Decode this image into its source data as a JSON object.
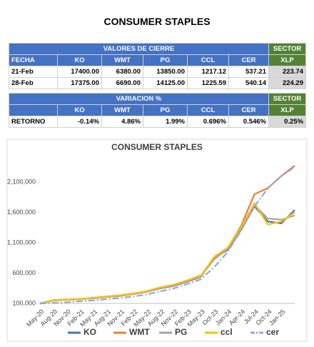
{
  "title": "CONSUMER STAPLES",
  "table1": {
    "group_header": "VALORES DE CIERRE",
    "sector": "SECTOR",
    "columns": [
      "FECHA",
      "KO",
      "WMT",
      "PG",
      "CCL",
      "CER",
      "XLP"
    ],
    "rows": [
      [
        "21-Feb",
        "17400.00",
        "6380.00",
        "13850.00",
        "1217.12",
        "537.21",
        "223.74"
      ],
      [
        "28-Feb",
        "17375.00",
        "6690.00",
        "14125.00",
        "1225.59",
        "540.14",
        "224.29"
      ]
    ]
  },
  "table2": {
    "group_header": "VARIACION %",
    "sector": "SECTOR",
    "columns": [
      "KO",
      "WMT",
      "PG",
      "CCL",
      "CER",
      "XLP"
    ],
    "rows": [
      [
        "RETORNO",
        "-0.14%",
        "4.86%",
        "1.99%",
        "0.696%",
        "0.546%",
        "0.25%"
      ]
    ]
  },
  "chart_data": {
    "type": "line",
    "title": "CONSUMER STAPLES",
    "categories": [
      "May-20",
      "Aug-20",
      "Nov-20",
      "Feb-21",
      "May-21",
      "Aug-21",
      "Nov-21",
      "Feb-22",
      "May-22",
      "Aug-22",
      "Nov-22",
      "Feb-23",
      "May-23",
      "Oct-23",
      "Jan-24",
      "Apr-24",
      "Jul-24",
      "Oct-24",
      "Jan-25",
      null
    ],
    "ylim": [
      100000,
      2500000
    ],
    "yticks": [
      {
        "value": 100000,
        "label": "100,000"
      },
      {
        "value": 600000,
        "label": "600,000"
      },
      {
        "value": 1100000,
        "label": "1,100,000"
      },
      {
        "value": 1600000,
        "label": "1,600,000"
      },
      {
        "value": 2100000,
        "label": "2,100,000"
      }
    ],
    "grid": false,
    "series": [
      {
        "name": "KO",
        "color": "#4472c4",
        "dash": false,
        "values": [
          100000,
          150000,
          160000,
          170000,
          185000,
          205000,
          225000,
          255000,
          295000,
          350000,
          390000,
          460000,
          540000,
          860000,
          980000,
          1320000,
          1700000,
          1450000,
          1420000,
          1640000
        ]
      },
      {
        "name": "WMT",
        "color": "#ed7d31",
        "dash": false,
        "values": [
          100000,
          155000,
          165000,
          175000,
          195000,
          215000,
          235000,
          265000,
          305000,
          365000,
          410000,
          480000,
          560000,
          840000,
          1010000,
          1380000,
          1900000,
          2000000,
          2200000,
          2370000
        ]
      },
      {
        "name": "PG",
        "color": "#a5a5a5",
        "dash": false,
        "values": [
          100000,
          148000,
          158000,
          168000,
          188000,
          208000,
          228000,
          258000,
          300000,
          355000,
          400000,
          470000,
          550000,
          830000,
          1000000,
          1340000,
          1720000,
          1500000,
          1480000,
          1550000
        ]
      },
      {
        "name": "ccl",
        "color": "#ffc000",
        "dash": false,
        "values": [
          100000,
          152000,
          162000,
          172000,
          192000,
          212000,
          232000,
          262000,
          302000,
          362000,
          405000,
          475000,
          555000,
          870000,
          1020000,
          1360000,
          1750000,
          1400000,
          1450000,
          1600000
        ]
      },
      {
        "name": "cer",
        "color": "#8faadc",
        "dash": true,
        "values": [
          100000,
          110000,
          120000,
          135000,
          150000,
          170000,
          190000,
          215000,
          250000,
          300000,
          350000,
          420000,
          500000,
          700000,
          950000,
          1300000,
          1700000,
          2000000,
          2200000,
          2350000
        ]
      }
    ]
  }
}
